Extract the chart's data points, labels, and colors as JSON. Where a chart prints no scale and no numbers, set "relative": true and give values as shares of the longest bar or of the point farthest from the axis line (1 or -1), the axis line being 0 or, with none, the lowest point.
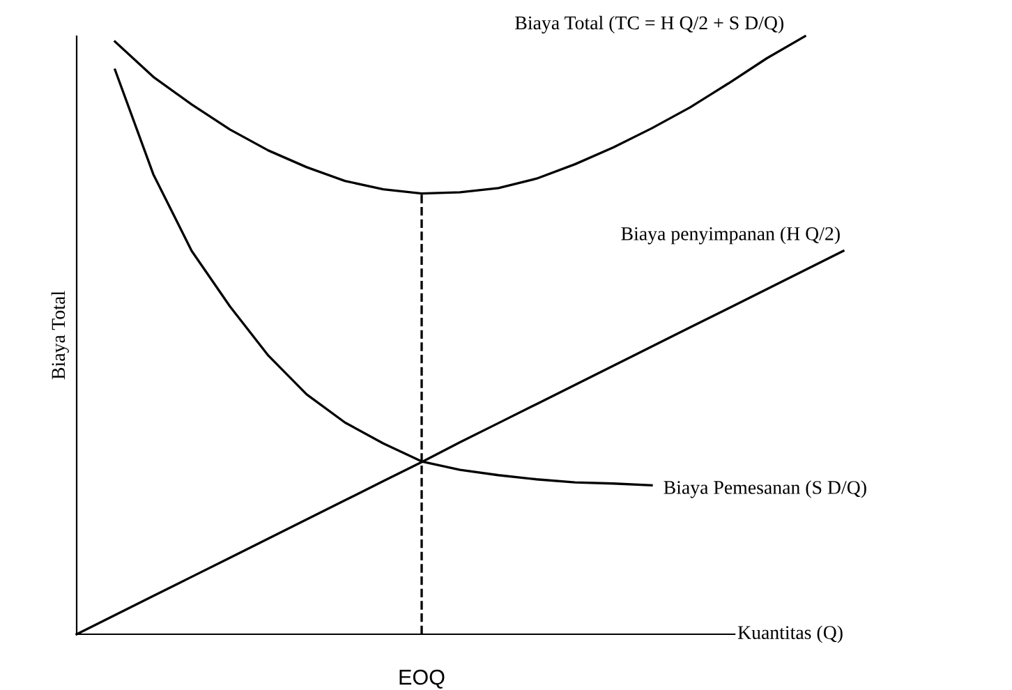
{
  "chart_data": {
    "type": "line",
    "relative": true,
    "xlabel": "Kuantitas (Q)",
    "ylabel": "Biaya Total",
    "categories": [
      null,
      null,
      null,
      null,
      null,
      null,
      null,
      null,
      null,
      null,
      null,
      null,
      null,
      null,
      null,
      null,
      null,
      null,
      null,
      null,
      null
    ],
    "series": [
      {
        "name": "Biaya Total (TC = H Q/2 + S D/Q)",
        "color": "#000000",
        "values": [
          null,
          0.991,
          0.932,
          0.886,
          0.844,
          0.809,
          0.781,
          0.758,
          0.744,
          0.737,
          0.739,
          0.746,
          0.762,
          0.786,
          0.814,
          0.846,
          0.881,
          0.921,
          0.963,
          1,
          null
        ]
      },
      {
        "name": "Biaya penyimpanan (H Q/2)",
        "color": "#000000",
        "values": [
          0,
          0.032,
          0.064,
          0.096,
          0.128,
          0.16,
          0.192,
          0.224,
          0.256,
          0.288,
          0.321,
          0.353,
          0.385,
          0.417,
          0.449,
          0.481,
          0.513,
          0.545,
          0.577,
          0.609,
          0.641
        ]
      },
      {
        "name": "Biaya Pemesanan (S D/Q)",
        "color": "#000000",
        "values": [
          null,
          0.944,
          0.769,
          0.641,
          0.548,
          0.466,
          0.401,
          0.354,
          0.319,
          0.289,
          0.275,
          0.266,
          0.259,
          0.254,
          0.252,
          0.249,
          null,
          null,
          null,
          null,
          null
        ]
      }
    ],
    "annotations": [
      "EOQ"
    ],
    "legend": false,
    "marker": "none",
    "line_style": "solid"
  }
}
